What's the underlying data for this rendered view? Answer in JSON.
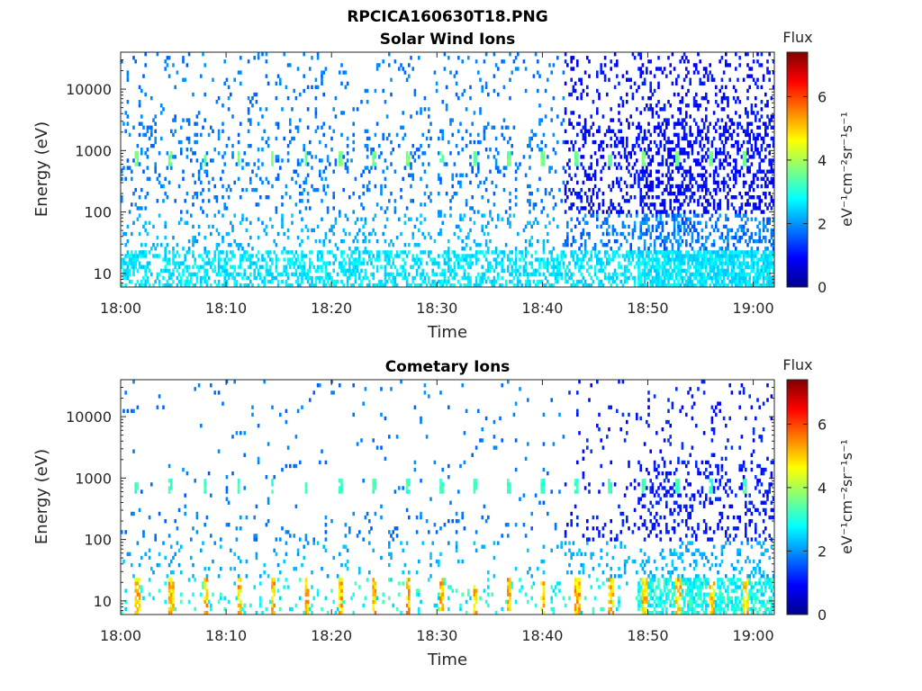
{
  "figure_title": "RPCICA160630T18.PNG",
  "chart_data": [
    {
      "type": "heatmap",
      "title": "Solar Wind Ions",
      "xlabel": "Time",
      "ylabel": "Energy (eV)",
      "yscale": "log",
      "xlim": [
        "18:00",
        "19:02"
      ],
      "ylim": [
        6,
        40000
      ],
      "xticks": [
        "18:00",
        "18:10",
        "18:20",
        "18:30",
        "18:40",
        "18:50",
        "19:00"
      ],
      "yticks": [
        "10",
        "100",
        "1000",
        "10000"
      ],
      "colorbar": {
        "label": "eV⁻¹cm⁻²sr⁻¹s⁻¹",
        "title": "Flux",
        "range": [
          0,
          7.4
        ],
        "ticks": [
          "0",
          "2",
          "4",
          "6"
        ],
        "colormap": "jet"
      },
      "features": {
        "low_energy_band_eV": [
          7,
          25
        ],
        "low_energy_level": 2.6,
        "periodic_peak_eV": 750,
        "periodic_peak_level": 3.6,
        "periodic_interval_min": 3.2,
        "background_level": 1.8,
        "high_energy_level_after_1842": 1.0
      }
    },
    {
      "type": "heatmap",
      "title": "Cometary Ions",
      "xlabel": "Time",
      "ylabel": "Energy (eV)",
      "yscale": "log",
      "xlim": [
        "18:00",
        "19:02"
      ],
      "ylim": [
        6,
        40000
      ],
      "xticks": [
        "18:00",
        "18:10",
        "18:20",
        "18:30",
        "18:40",
        "18:50",
        "19:00"
      ],
      "yticks": [
        "10",
        "100",
        "1000",
        "10000"
      ],
      "colorbar": {
        "label": "eV⁻¹cm⁻²sr⁻¹s⁻¹",
        "title": "Flux",
        "range": [
          0,
          7.4
        ],
        "ticks": [
          "0",
          "2",
          "4",
          "6"
        ],
        "colormap": "jet"
      },
      "features": {
        "low_energy_band_eV": [
          7,
          22
        ],
        "low_energy_peak_level": 5.0,
        "periodic_peak_eV": 750,
        "periodic_peak_level": 3.2,
        "periodic_interval_min": 3.2,
        "background_level": 1.8
      }
    }
  ]
}
